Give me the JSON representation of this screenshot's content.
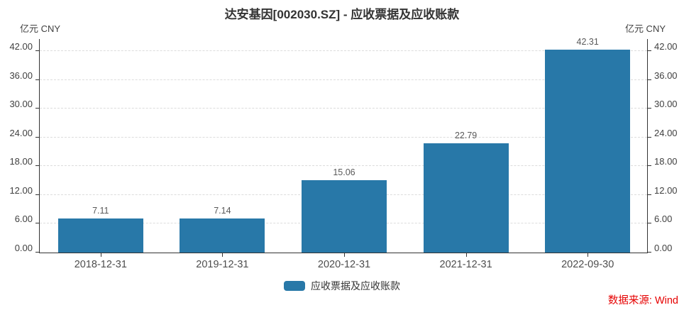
{
  "title": "达安基因[002030.SZ] - 应收票据及应收账款",
  "axis_units": {
    "left": "亿元 CNY",
    "right": "亿元 CNY"
  },
  "legend": {
    "label": "应收票据及应收账款"
  },
  "source_note": "数据来源: Wind",
  "colors": {
    "bar": "#2878a8",
    "axis_line": "#333333",
    "gridline": "#dcdcdc",
    "tick_text": "#404040",
    "title_text": "#333333",
    "source_text": "#e60000"
  },
  "chart_data": {
    "type": "bar",
    "title": "达安基因[002030.SZ] - 应收票据及应收账款",
    "categories": [
      "2018-12-31",
      "2019-12-31",
      "2020-12-31",
      "2021-12-31",
      "2022-09-30"
    ],
    "values": [
      7.11,
      7.14,
      15.06,
      22.79,
      42.31
    ],
    "value_labels": [
      "7.11",
      "7.14",
      "15.06",
      "22.79",
      "42.31"
    ],
    "series_name": "应收票据及应收账款",
    "xlabel": "",
    "ylabel": "亿元 CNY",
    "ylim": [
      0,
      42
    ],
    "yticks": [
      0.0,
      6.0,
      12.0,
      18.0,
      24.0,
      30.0,
      36.0,
      42.0
    ],
    "ytick_labels": [
      "0.00",
      "6.00",
      "12.00",
      "18.00",
      "24.00",
      "30.00",
      "36.00",
      "42.00"
    ],
    "grid": true,
    "grid_style": "dashed",
    "dual_axis": true,
    "legend_entries": [
      "应收票据及应收账款"
    ],
    "legend_position": "bottom"
  }
}
